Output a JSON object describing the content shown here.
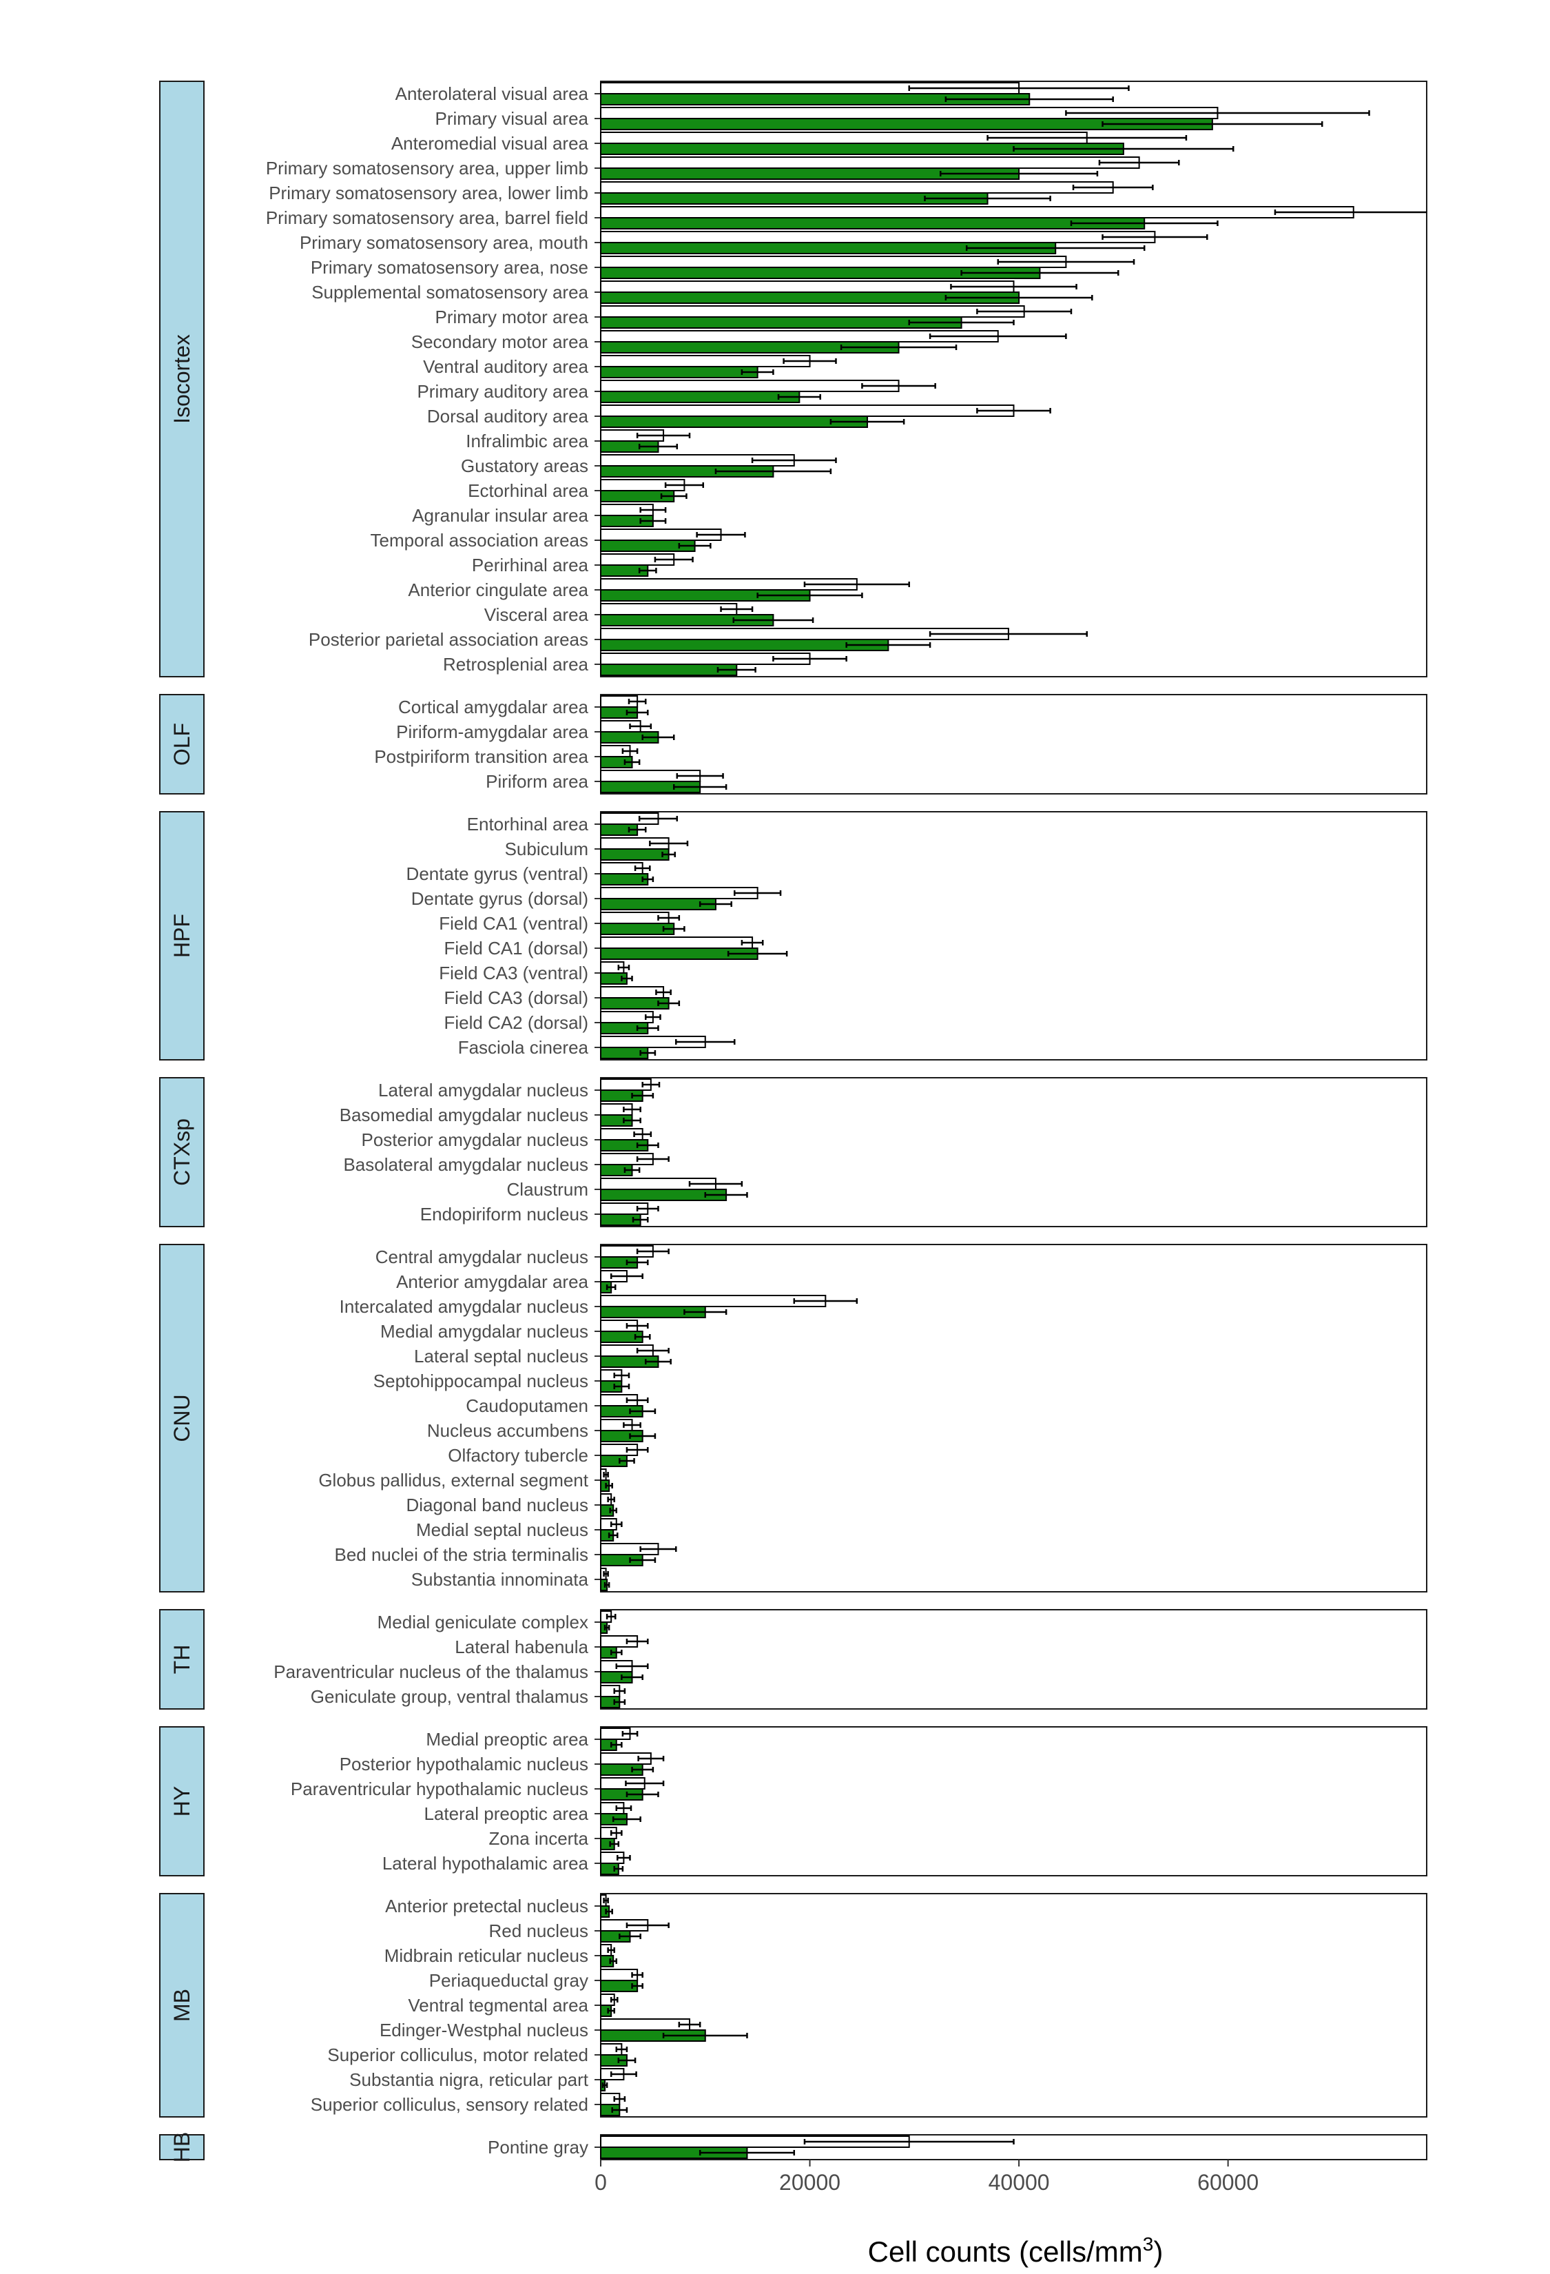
{
  "chart_data": {
    "type": "bar",
    "orientation": "horizontal",
    "xlabel": "Cell counts (cells/mm",
    "xlabel_superscript": "3",
    "xlabel_suffix": ")",
    "xlim": [
      0,
      79000
    ],
    "xticks": [
      0,
      20000,
      40000,
      60000
    ],
    "xtick_labels": [
      "0",
      "20000",
      "40000",
      "60000"
    ],
    "grid": false,
    "legend": "none",
    "series": [
      {
        "key": "white",
        "color": "#ffffff"
      },
      {
        "key": "green",
        "color": "#138a13"
      }
    ],
    "colors": {
      "strip": "#add8e6",
      "green": "#138a13",
      "white": "#ffffff",
      "outline": "#000000"
    },
    "facets": [
      {
        "name": "Isocortex",
        "regions": [
          {
            "label": "Anterolateral visual area",
            "white": 40000,
            "white_err": 10500,
            "green": 41000,
            "green_err": 8000
          },
          {
            "label": "Primary visual area",
            "white": 59000,
            "white_err": 14500,
            "green": 58500,
            "green_err": 10500
          },
          {
            "label": "Anteromedial visual area",
            "white": 46500,
            "white_err": 9500,
            "green": 50000,
            "green_err": 10500
          },
          {
            "label": "Primary somatosensory area, upper limb",
            "white": 51500,
            "white_err": 3800,
            "green": 40000,
            "green_err": 7500
          },
          {
            "label": "Primary somatosensory area, lower limb",
            "white": 49000,
            "white_err": 3800,
            "green": 37000,
            "green_err": 6000
          },
          {
            "label": "Primary somatosensory area, barrel field",
            "white": 72000,
            "white_err": 7500,
            "green": 52000,
            "green_err": 7000
          },
          {
            "label": "Primary somatosensory area, mouth",
            "white": 53000,
            "white_err": 5000,
            "green": 43500,
            "green_err": 8500
          },
          {
            "label": "Primary somatosensory area, nose",
            "white": 44500,
            "white_err": 6500,
            "green": 42000,
            "green_err": 7500
          },
          {
            "label": "Supplemental somatosensory area",
            "white": 39500,
            "white_err": 6000,
            "green": 40000,
            "green_err": 7000
          },
          {
            "label": "Primary motor area",
            "white": 40500,
            "white_err": 4500,
            "green": 34500,
            "green_err": 5000
          },
          {
            "label": "Secondary motor area",
            "white": 38000,
            "white_err": 6500,
            "green": 28500,
            "green_err": 5500
          },
          {
            "label": "Ventral auditory area",
            "white": 20000,
            "white_err": 2500,
            "green": 15000,
            "green_err": 1500
          },
          {
            "label": "Primary auditory area",
            "white": 28500,
            "white_err": 3500,
            "green": 19000,
            "green_err": 2000
          },
          {
            "label": "Dorsal auditory area",
            "white": 39500,
            "white_err": 3500,
            "green": 25500,
            "green_err": 3500
          },
          {
            "label": "Infralimbic area",
            "white": 6000,
            "white_err": 2500,
            "green": 5500,
            "green_err": 1800
          },
          {
            "label": "Gustatory areas",
            "white": 18500,
            "white_err": 4000,
            "green": 16500,
            "green_err": 5500
          },
          {
            "label": "Ectorhinal area",
            "white": 8000,
            "white_err": 1800,
            "green": 7000,
            "green_err": 1200
          },
          {
            "label": "Agranular insular area",
            "white": 5000,
            "white_err": 1200,
            "green": 5000,
            "green_err": 1200
          },
          {
            "label": "Temporal association areas",
            "white": 11500,
            "white_err": 2300,
            "green": 9000,
            "green_err": 1500
          },
          {
            "label": "Perirhinal area",
            "white": 7000,
            "white_err": 1800,
            "green": 4500,
            "green_err": 800
          },
          {
            "label": "Anterior cingulate area",
            "white": 24500,
            "white_err": 5000,
            "green": 20000,
            "green_err": 5000
          },
          {
            "label": "Visceral area",
            "white": 13000,
            "white_err": 1500,
            "green": 16500,
            "green_err": 3800
          },
          {
            "label": "Posterior parietal association areas",
            "white": 39000,
            "white_err": 7500,
            "green": 27500,
            "green_err": 4000
          },
          {
            "label": "Retrosplenial area",
            "white": 20000,
            "white_err": 3500,
            "green": 13000,
            "green_err": 1800
          }
        ]
      },
      {
        "name": "OLF",
        "regions": [
          {
            "label": "Cortical amygdalar area",
            "white": 3500,
            "white_err": 800,
            "green": 3500,
            "green_err": 1000
          },
          {
            "label": "Piriform-amygdalar area",
            "white": 3800,
            "white_err": 1000,
            "green": 5500,
            "green_err": 1500
          },
          {
            "label": "Postpiriform transition area",
            "white": 2800,
            "white_err": 700,
            "green": 3000,
            "green_err": 700
          },
          {
            "label": "Piriform area",
            "white": 9500,
            "white_err": 2200,
            "green": 9500,
            "green_err": 2500
          }
        ]
      },
      {
        "name": "HPF",
        "regions": [
          {
            "label": "Entorhinal area",
            "white": 5500,
            "white_err": 1800,
            "green": 3500,
            "green_err": 800
          },
          {
            "label": "Subiculum",
            "white": 6500,
            "white_err": 1800,
            "green": 6500,
            "green_err": 600
          },
          {
            "label": "Dentate gyrus (ventral)",
            "white": 4000,
            "white_err": 700,
            "green": 4500,
            "green_err": 500
          },
          {
            "label": "Dentate gyrus (dorsal)",
            "white": 15000,
            "white_err": 2200,
            "green": 11000,
            "green_err": 1500
          },
          {
            "label": "Field CA1 (ventral)",
            "white": 6500,
            "white_err": 1000,
            "green": 7000,
            "green_err": 1000
          },
          {
            "label": "Field CA1 (dorsal)",
            "white": 14500,
            "white_err": 1000,
            "green": 15000,
            "green_err": 2800
          },
          {
            "label": "Field CA3 (ventral)",
            "white": 2200,
            "white_err": 500,
            "green": 2500,
            "green_err": 500
          },
          {
            "label": "Field CA3 (dorsal)",
            "white": 6000,
            "white_err": 700,
            "green": 6500,
            "green_err": 1000
          },
          {
            "label": "Field CA2 (dorsal)",
            "white": 5000,
            "white_err": 700,
            "green": 4500,
            "green_err": 1000
          },
          {
            "label": "Fasciola cinerea",
            "white": 10000,
            "white_err": 2800,
            "green": 4500,
            "green_err": 700
          }
        ]
      },
      {
        "name": "CTXsp",
        "regions": [
          {
            "label": "Lateral amygdalar nucleus",
            "white": 4800,
            "white_err": 800,
            "green": 4000,
            "green_err": 1000
          },
          {
            "label": "Basomedial amygdalar nucleus",
            "white": 3000,
            "white_err": 800,
            "green": 3000,
            "green_err": 800
          },
          {
            "label": "Posterior amygdalar nucleus",
            "white": 4000,
            "white_err": 800,
            "green": 4500,
            "green_err": 1000
          },
          {
            "label": "Basolateral amygdalar nucleus",
            "white": 5000,
            "white_err": 1500,
            "green": 3000,
            "green_err": 700
          },
          {
            "label": "Claustrum",
            "white": 11000,
            "white_err": 2500,
            "green": 12000,
            "green_err": 2000
          },
          {
            "label": "Endopiriform nucleus",
            "white": 4500,
            "white_err": 1000,
            "green": 3800,
            "green_err": 700
          }
        ]
      },
      {
        "name": "CNU",
        "regions": [
          {
            "label": "Central amygdalar nucleus",
            "white": 5000,
            "white_err": 1500,
            "green": 3500,
            "green_err": 1000
          },
          {
            "label": "Anterior amygdalar area",
            "white": 2500,
            "white_err": 1500,
            "green": 1000,
            "green_err": 400
          },
          {
            "label": "Intercalated amygdalar nucleus",
            "white": 21500,
            "white_err": 3000,
            "green": 10000,
            "green_err": 2000
          },
          {
            "label": "Medial amygdalar nucleus",
            "white": 3500,
            "white_err": 1000,
            "green": 4000,
            "green_err": 700
          },
          {
            "label": "Lateral septal nucleus",
            "white": 5000,
            "white_err": 1500,
            "green": 5500,
            "green_err": 1200
          },
          {
            "label": "Septohippocampal nucleus",
            "white": 2000,
            "white_err": 700,
            "green": 2000,
            "green_err": 700
          },
          {
            "label": "Caudoputamen",
            "white": 3500,
            "white_err": 1000,
            "green": 4000,
            "green_err": 1200
          },
          {
            "label": "Nucleus accumbens",
            "white": 3000,
            "white_err": 800,
            "green": 4000,
            "green_err": 1200
          },
          {
            "label": "Olfactory tubercle",
            "white": 3500,
            "white_err": 1000,
            "green": 2500,
            "green_err": 700
          },
          {
            "label": "Globus pallidus, external segment",
            "white": 500,
            "white_err": 200,
            "green": 800,
            "green_err": 300
          },
          {
            "label": "Diagonal band nucleus",
            "white": 1000,
            "white_err": 300,
            "green": 1200,
            "green_err": 300
          },
          {
            "label": "Medial septal nucleus",
            "white": 1500,
            "white_err": 500,
            "green": 1200,
            "green_err": 400
          },
          {
            "label": "Bed nuclei of the stria terminalis",
            "white": 5500,
            "white_err": 1700,
            "green": 4000,
            "green_err": 1200
          },
          {
            "label": "Substantia innominata",
            "white": 500,
            "white_err": 200,
            "green": 600,
            "green_err": 200
          }
        ]
      },
      {
        "name": "TH",
        "regions": [
          {
            "label": "Medial geniculate complex",
            "white": 1000,
            "white_err": 400,
            "green": 600,
            "green_err": 200
          },
          {
            "label": "Lateral habenula",
            "white": 3500,
            "white_err": 1000,
            "green": 1500,
            "green_err": 500
          },
          {
            "label": "Paraventricular nucleus of the thalamus",
            "white": 3000,
            "white_err": 1500,
            "green": 3000,
            "green_err": 1000
          },
          {
            "label": "Geniculate group, ventral thalamus",
            "white": 1800,
            "white_err": 500,
            "green": 1800,
            "green_err": 500
          }
        ]
      },
      {
        "name": "HY",
        "regions": [
          {
            "label": "Medial preoptic area",
            "white": 2800,
            "white_err": 700,
            "green": 1500,
            "green_err": 500
          },
          {
            "label": "Posterior hypothalamic nucleus",
            "white": 4800,
            "white_err": 1200,
            "green": 4000,
            "green_err": 1000
          },
          {
            "label": "Paraventricular hypothalamic nucleus",
            "white": 4200,
            "white_err": 1800,
            "green": 4000,
            "green_err": 1500
          },
          {
            "label": "Lateral preoptic area",
            "white": 2200,
            "white_err": 700,
            "green": 2500,
            "green_err": 1300
          },
          {
            "label": "Zona incerta",
            "white": 1500,
            "white_err": 500,
            "green": 1300,
            "green_err": 400
          },
          {
            "label": "Lateral hypothalamic area",
            "white": 2200,
            "white_err": 600,
            "green": 1700,
            "green_err": 400
          }
        ]
      },
      {
        "name": "MB",
        "regions": [
          {
            "label": "Anterior pretectal nucleus",
            "white": 500,
            "white_err": 200,
            "green": 800,
            "green_err": 300
          },
          {
            "label": "Red nucleus",
            "white": 4500,
            "white_err": 2000,
            "green": 2800,
            "green_err": 1000
          },
          {
            "label": "Midbrain reticular nucleus",
            "white": 1000,
            "white_err": 300,
            "green": 1200,
            "green_err": 300
          },
          {
            "label": "Periaqueductal gray",
            "white": 3500,
            "white_err": 500,
            "green": 3500,
            "green_err": 500
          },
          {
            "label": "Ventral tegmental area",
            "white": 1300,
            "white_err": 300,
            "green": 1000,
            "green_err": 300
          },
          {
            "label": "Edinger-Westphal nucleus",
            "white": 8500,
            "white_err": 1000,
            "green": 10000,
            "green_err": 4000
          },
          {
            "label": "Superior colliculus, motor related",
            "white": 2000,
            "white_err": 500,
            "green": 2500,
            "green_err": 800
          },
          {
            "label": "Substantia nigra, reticular part",
            "white": 2200,
            "white_err": 1200,
            "green": 400,
            "green_err": 200
          },
          {
            "label": "Superior colliculus, sensory related",
            "white": 1800,
            "white_err": 500,
            "green": 1800,
            "green_err": 700
          }
        ]
      },
      {
        "name": "HB",
        "regions": [
          {
            "label": "Pontine gray",
            "white": 29500,
            "white_err": 10000,
            "green": 14000,
            "green_err": 4500
          }
        ]
      }
    ]
  }
}
